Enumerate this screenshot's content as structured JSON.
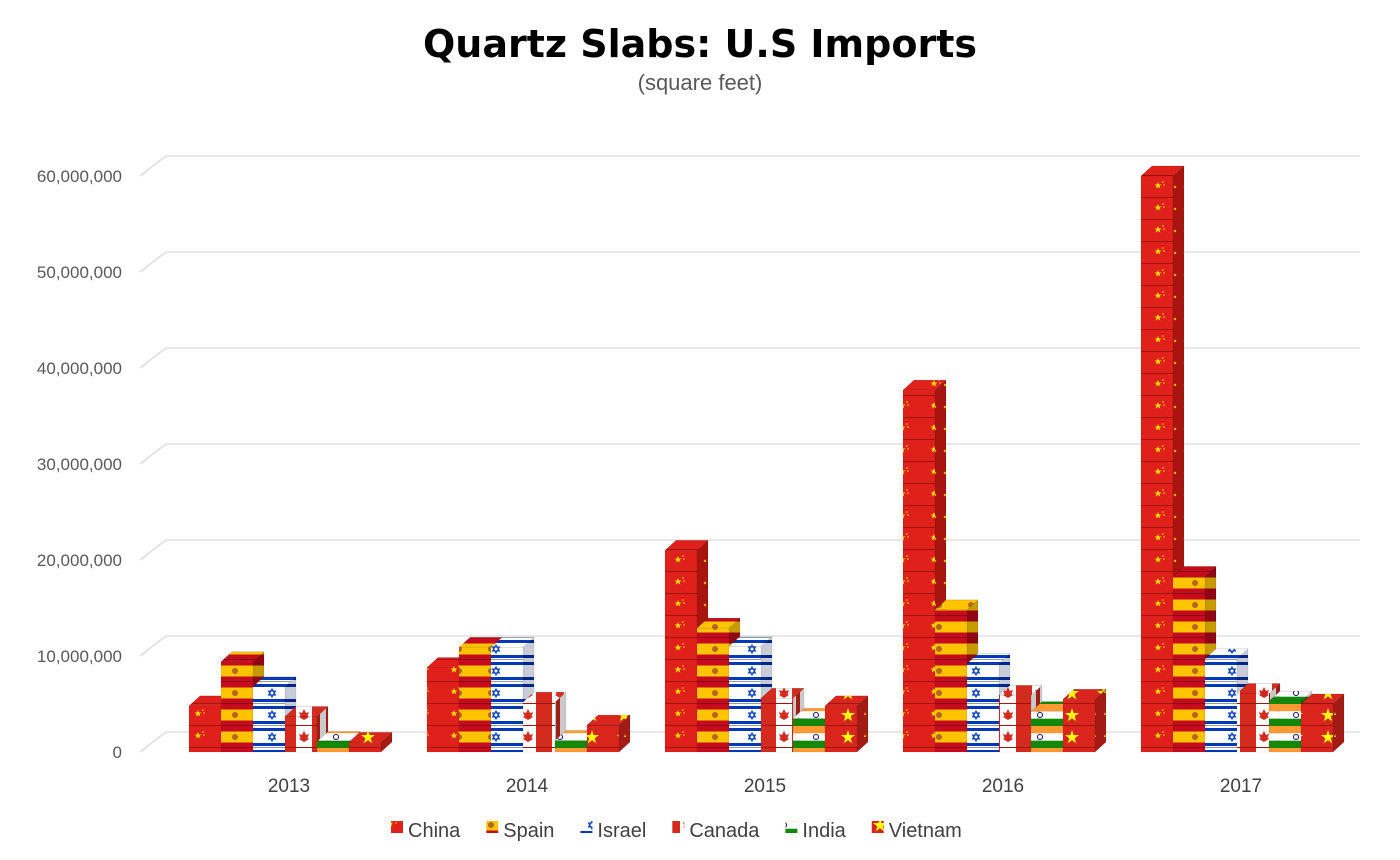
{
  "chart_data": {
    "type": "bar",
    "title": "Quartz Slabs: U.S Imports",
    "subtitle": "(square feet)",
    "xlabel": "",
    "ylabel": "",
    "categories": [
      "2013",
      "2014",
      "2015",
      "2016",
      "2017"
    ],
    "ylim": [
      0,
      60000000
    ],
    "yticks": [
      0,
      10000000,
      20000000,
      30000000,
      40000000,
      50000000,
      60000000
    ],
    "ytick_labels": [
      "0",
      "10,000,000",
      "20,000,000",
      "30,000,000",
      "40,000,000",
      "50,000,000",
      "60,000,000"
    ],
    "grid": true,
    "legend_position": "bottom",
    "series": [
      {
        "name": "China",
        "flag": "china",
        "values": [
          4800000,
          8800000,
          21000000,
          37700000,
          60000000
        ]
      },
      {
        "name": "Spain",
        "flag": "spain",
        "values": [
          9400000,
          10900000,
          12900000,
          14800000,
          18300000
        ]
      },
      {
        "name": "Israel",
        "flag": "israel",
        "values": [
          6800000,
          10900000,
          11000000,
          9200000,
          9700000
        ]
      },
      {
        "name": "Canada",
        "flag": "canada",
        "values": [
          3700000,
          5200000,
          5600000,
          5900000,
          6100000
        ]
      },
      {
        "name": "India",
        "flag": "india",
        "values": [
          1100000,
          1200000,
          3500000,
          4200000,
          5300000
        ]
      },
      {
        "name": "Vietnam",
        "flag": "vietnam",
        "values": [
          1000000,
          2800000,
          4800000,
          5500000,
          5000000
        ]
      }
    ]
  }
}
